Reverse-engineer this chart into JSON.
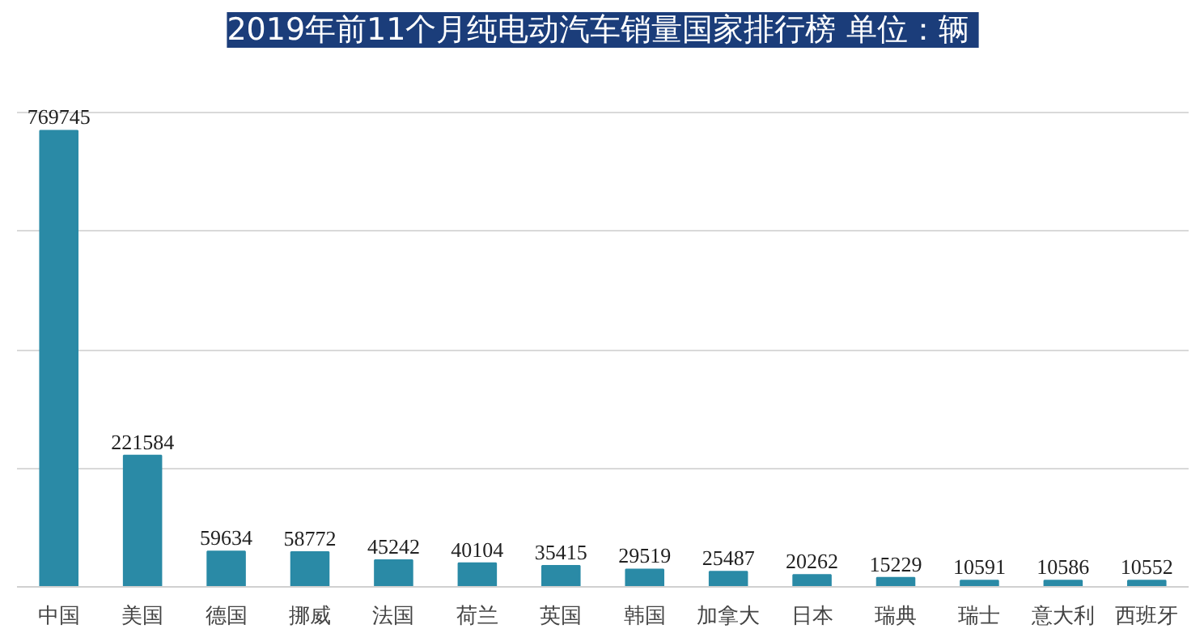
{
  "chart_data": {
    "type": "bar",
    "title": "2019年前11个月纯电动汽车销量国家排行榜  单位：辆",
    "categories": [
      "中国",
      "美国",
      "德国",
      "挪威",
      "法国",
      "荷兰",
      "英国",
      "韩国",
      "加拿大",
      "日本",
      "瑞典",
      "瑞士",
      "意大利",
      "西班牙"
    ],
    "values": [
      769745,
      221584,
      59634,
      58772,
      45242,
      40104,
      35415,
      29519,
      25487,
      20262,
      15229,
      10591,
      10586,
      10552
    ],
    "color": "#2a8aa6",
    "data_labels": true,
    "yticks": [
      {
        "value": 0,
        "label": null
      },
      {
        "value": 200000,
        "label": null
      },
      {
        "value": 400000,
        "label": null
      },
      {
        "value": 600000,
        "label": null
      },
      {
        "value": 800000,
        "label": null
      }
    ],
    "tick_labels": "x",
    "grid": "y"
  }
}
